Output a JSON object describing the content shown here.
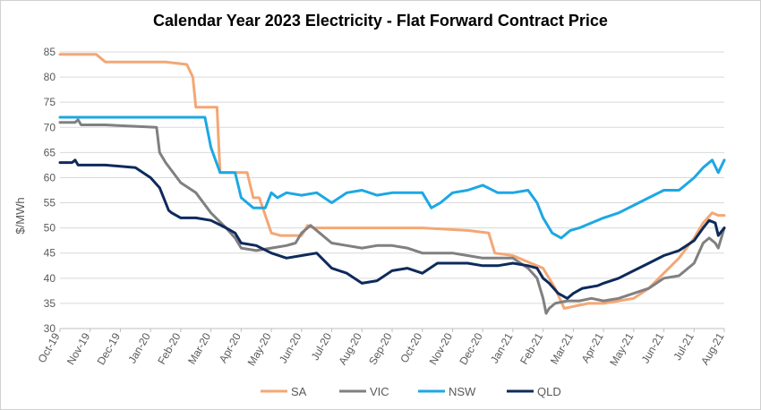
{
  "chart_data": {
    "type": "line",
    "title": "Calendar Year 2023 Electricity - Flat Forward Contract Price",
    "xlabel": "",
    "ylabel": "$/MWh",
    "ylim": [
      30,
      85
    ],
    "yticks": [
      30,
      35,
      40,
      45,
      50,
      55,
      60,
      65,
      70,
      75,
      80,
      85
    ],
    "xlim": [
      0,
      22
    ],
    "x_tick_labels": [
      "Oct-19",
      "Nov-19",
      "Dec-19",
      "Jan-20",
      "Feb-20",
      "Mar-20",
      "Apr-20",
      "May-20",
      "Jun-20",
      "Jul-20",
      "Aug-20",
      "Sep-20",
      "Oct-20",
      "Nov-20",
      "Dec-20",
      "Jan-21",
      "Feb-21",
      "Mar-21",
      "Apr-21",
      "May-21",
      "Jun-21",
      "Jul-21",
      "Aug-21"
    ],
    "x_unit": "months since Oct-19",
    "grid": "horizontal",
    "legend_position": "bottom",
    "series": [
      {
        "name": "SA",
        "color": "#F4A774",
        "x": [
          0,
          1.2,
          1.5,
          3.5,
          4.2,
          4.4,
          4.5,
          5.2,
          5.3,
          5.5,
          6.2,
          6.4,
          6.6,
          7.0,
          7.3,
          8.0,
          8.2,
          8.4,
          9.0,
          10,
          11,
          12,
          13.5,
          14.2,
          14.4,
          15,
          15.6,
          16.0,
          16.4,
          16.7,
          17.1,
          17.5,
          18,
          18.5,
          19,
          19.5,
          20,
          20.5,
          21,
          21.3,
          21.6,
          21.8,
          22
        ],
        "y": [
          84.5,
          84.5,
          83,
          83,
          82.5,
          80,
          74,
          74,
          61,
          61,
          61,
          56,
          56,
          49,
          48.5,
          48.5,
          50.5,
          50,
          50,
          50,
          50,
          50,
          49.5,
          49,
          45,
          44.5,
          43,
          42,
          38,
          34,
          34.5,
          35,
          35,
          35.5,
          36,
          38,
          41,
          44,
          48,
          51,
          53,
          52.5,
          52.5
        ]
      },
      {
        "name": "VIC",
        "color": "#808080",
        "x": [
          0,
          0.5,
          0.6,
          0.7,
          1.5,
          3.2,
          3.3,
          3.5,
          4,
          4.5,
          5,
          5.5,
          5.8,
          6,
          6.5,
          7.0,
          7.5,
          7.8,
          8.0,
          8.3,
          8.6,
          9,
          9.5,
          10,
          10.5,
          11,
          11.5,
          12,
          12.5,
          13,
          13.5,
          14,
          14.5,
          15,
          15.5,
          15.8,
          16.0,
          16.1,
          16.2,
          16.4,
          16.8,
          17.2,
          17.6,
          18,
          18.5,
          19,
          19.5,
          20,
          20.5,
          21,
          21.3,
          21.5,
          21.7,
          21.8,
          22
        ],
        "y": [
          71,
          71,
          71.5,
          70.5,
          70.5,
          70,
          65,
          63,
          59,
          57,
          53,
          50,
          48,
          46,
          45.5,
          46,
          46.5,
          47,
          49,
          50.5,
          49,
          47,
          46.5,
          46,
          46.5,
          46.5,
          46,
          45,
          45,
          45,
          44.5,
          44,
          44,
          44,
          42,
          40,
          36,
          33,
          34,
          35,
          35.5,
          35.5,
          36,
          35.5,
          36,
          37,
          38,
          40,
          40.5,
          43,
          47,
          48,
          47,
          46,
          50
        ]
      },
      {
        "name": "NSW",
        "color": "#1CA8E3",
        "x": [
          0,
          1,
          2,
          3,
          4,
          4.3,
          4.5,
          4.8,
          5,
          5.3,
          5.5,
          5.8,
          6,
          6.2,
          6.4,
          6.8,
          7.0,
          7.2,
          7.5,
          8,
          8.5,
          9,
          9.5,
          10,
          10.5,
          11,
          11.5,
          12,
          12.3,
          12.6,
          13,
          13.5,
          14,
          14.5,
          15,
          15.5,
          15.8,
          16,
          16.3,
          16.6,
          16.9,
          17.2,
          17.6,
          18,
          18.5,
          19,
          19.5,
          20,
          20.5,
          21,
          21.3,
          21.6,
          21.8,
          22
        ],
        "y": [
          72,
          72,
          72,
          72,
          72,
          72,
          72,
          72,
          66,
          61,
          61,
          61,
          56,
          55,
          54,
          54,
          57,
          56,
          57,
          56.5,
          57,
          55,
          57,
          57.5,
          56.5,
          57,
          57,
          57,
          54,
          55,
          57,
          57.5,
          58.5,
          57,
          57,
          57.5,
          55,
          52,
          49,
          48,
          49.5,
          50,
          51,
          52,
          53,
          54.5,
          56,
          57.5,
          57.5,
          60,
          62,
          63.5,
          61,
          63.5
        ]
      },
      {
        "name": "QLD",
        "color": "#0E2A5C",
        "x": [
          0,
          0.4,
          0.5,
          0.6,
          1.5,
          2.5,
          3,
          3.3,
          3.6,
          3.7,
          4.0,
          4.5,
          5,
          5.5,
          5.8,
          6,
          6.5,
          7.0,
          7.5,
          8,
          8.5,
          9,
          9.5,
          10,
          10.5,
          11,
          11.5,
          12,
          12.5,
          13,
          13.5,
          14,
          14.5,
          15,
          15.5,
          15.8,
          16.0,
          16.2,
          16.5,
          16.8,
          17.0,
          17.3,
          17.8,
          18,
          18.5,
          19,
          19.5,
          20,
          20.5,
          21,
          21.3,
          21.5,
          21.7,
          21.8,
          22
        ],
        "y": [
          63,
          63,
          63.5,
          62.5,
          62.5,
          62,
          60,
          58,
          53.5,
          53,
          52,
          52,
          51.5,
          50,
          49,
          47,
          46.5,
          45,
          44,
          44.5,
          45,
          42,
          41,
          39,
          39.5,
          41.5,
          42,
          41,
          43,
          43,
          43,
          42.5,
          42.5,
          43,
          42.5,
          42,
          40,
          39,
          37,
          36,
          37,
          38,
          38.5,
          39,
          40,
          41.5,
          43,
          44.5,
          45.5,
          47.5,
          50,
          51.5,
          51,
          48.5,
          50
        ]
      }
    ]
  }
}
